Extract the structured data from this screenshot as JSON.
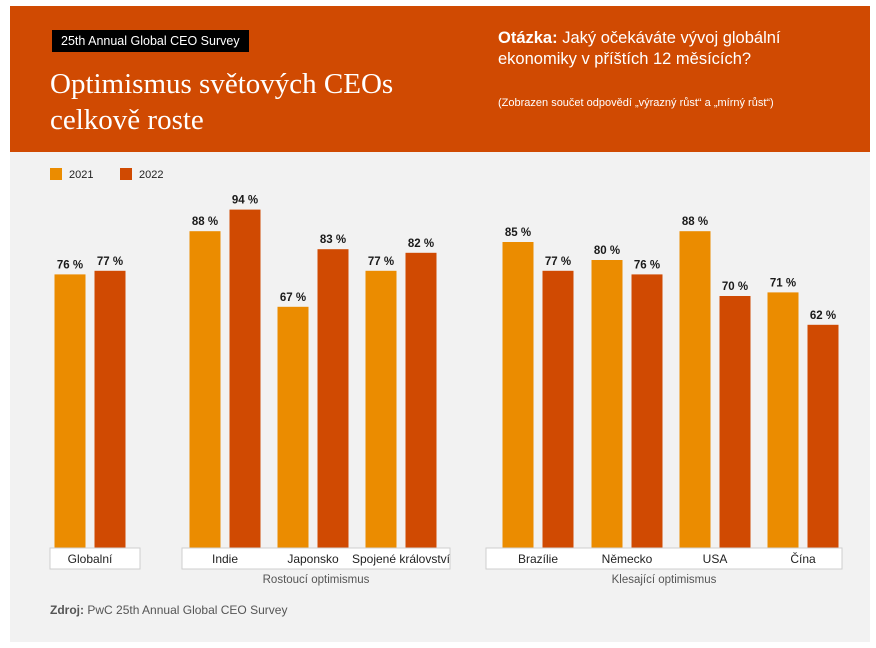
{
  "header": {
    "tag": "25th Annual Global CEO Survey",
    "title_line1": "Optimismus světových CEOs",
    "title_line2": "celkově roste",
    "question_label": "Otázka:",
    "question_text": "Jaký očekáváte vývoj globální ekonomiky v příštích 12 měsících?",
    "note": "(Zobrazen součet odpovědí  „výrazný růst“ a „mírný růst“)"
  },
  "source": {
    "label": "Zdroj:",
    "text": "PwC 25th Annual Global CEO Survey"
  },
  "colors": {
    "banner": "#d04a02",
    "series_2021": "#eb8c00",
    "series_2022": "#d04a02",
    "background": "#f2f2f2"
  },
  "chart_data": {
    "type": "bar",
    "categories": [
      "Globalní",
      "Indie",
      "Japonsko",
      "Spojené království",
      "Brazílie",
      "Německo",
      "USA",
      "Čína"
    ],
    "series": [
      {
        "name": "2021",
        "values": [
          76,
          88,
          67,
          77,
          85,
          80,
          88,
          71
        ]
      },
      {
        "name": "2022",
        "values": [
          77,
          94,
          83,
          82,
          77,
          76,
          70,
          62
        ]
      }
    ],
    "value_suffix": " %",
    "groups": [
      {
        "label": "",
        "categories": [
          "Globalní"
        ]
      },
      {
        "label": "Rostoucí optimismus",
        "categories": [
          "Indie",
          "Japonsko",
          "Spojené království"
        ]
      },
      {
        "label": "Klesající optimismus",
        "categories": [
          "Brazílie",
          "Německo",
          "USA",
          "Čína"
        ]
      }
    ],
    "ylim": [
      0,
      100
    ],
    "grid": false,
    "legend_position": "top-left"
  }
}
